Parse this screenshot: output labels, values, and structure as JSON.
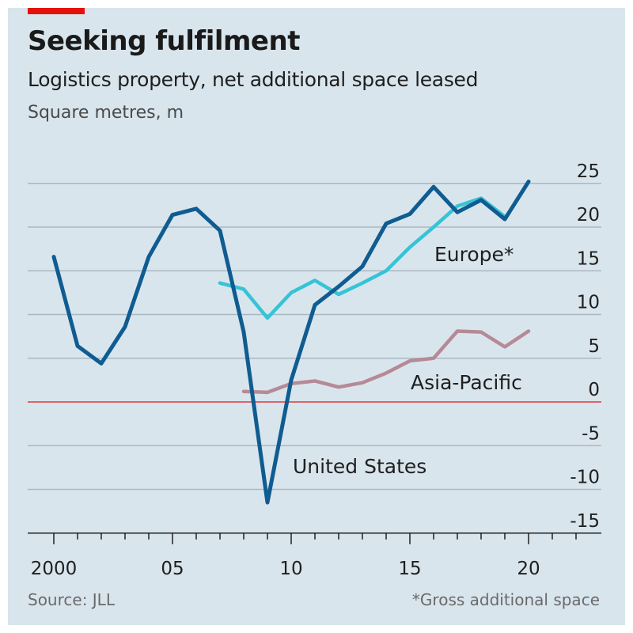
{
  "chart_data": {
    "type": "line",
    "title": "Seeking fulfilment",
    "subtitle": "Logistics property, net additional space leased",
    "ylabel": "Square metres, m",
    "ylim": [
      -15,
      25
    ],
    "yticks": [
      25,
      20,
      15,
      10,
      5,
      0,
      -5,
      -10,
      -15
    ],
    "xlim": [
      2000,
      2022.5
    ],
    "xticks": [
      2000,
      2005,
      2010,
      2015,
      2020
    ],
    "xtick_labels": [
      "2000",
      "05",
      "10",
      "15",
      "20"
    ],
    "grid": true,
    "colors": {
      "United States": "#0f5c91",
      "Europe*": "#36c3d6",
      "Asia-Pacific": "#b58a96",
      "zero_line": "#e0636b",
      "background": "#d9e5ed"
    },
    "series": [
      {
        "name": "United States",
        "x": [
          2000,
          2001,
          2002,
          2003,
          2004,
          2005,
          2006,
          2007,
          2008,
          2009,
          2010,
          2011,
          2012,
          2013,
          2014,
          2015,
          2016,
          2017,
          2018,
          2019,
          2020
        ],
        "values": [
          16.6,
          6.4,
          4.4,
          8.6,
          16.6,
          21.4,
          22.1,
          19.6,
          8.0,
          -11.5,
          2.5,
          11.1,
          13.2,
          15.5,
          20.4,
          21.5,
          24.6,
          21.7,
          23.1,
          20.9,
          25.2
        ]
      },
      {
        "name": "Europe*",
        "x": [
          2007,
          2008,
          2009,
          2010,
          2011,
          2012,
          2013,
          2014,
          2015,
          2016,
          2017,
          2018,
          2019
        ],
        "values": [
          13.6,
          12.9,
          9.6,
          12.5,
          13.9,
          12.3,
          13.6,
          15.0,
          17.7,
          20.0,
          22.4,
          23.3,
          21.2
        ]
      },
      {
        "name": "Asia-Pacific",
        "x": [
          2008,
          2009,
          2010,
          2011,
          2012,
          2013,
          2014,
          2015,
          2016,
          2017,
          2018,
          2019,
          2020
        ],
        "values": [
          1.2,
          1.1,
          2.1,
          2.4,
          1.7,
          2.2,
          3.3,
          4.7,
          5.0,
          8.1,
          8.0,
          6.3,
          8.1
        ]
      }
    ],
    "source": "Source: JLL",
    "footnote": "*Gross additional space"
  }
}
